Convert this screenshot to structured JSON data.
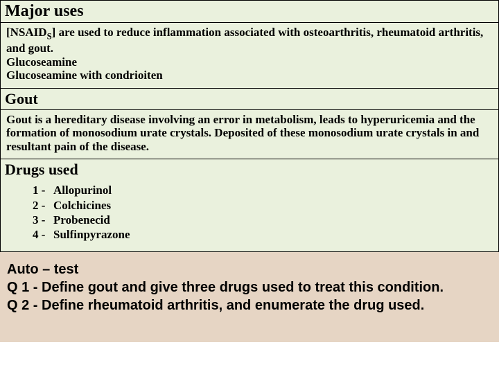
{
  "colors": {
    "upper_bg": "#eaf1dd",
    "lower_bg": "#e6d5c4",
    "border": "#000000",
    "text": "#000000"
  },
  "section1": {
    "title": "Major uses",
    "line1_prefix": "[NSAID",
    "line1_sub": "S",
    "line1_suffix": "] are used to reduce inflammation associated with osteoarthritis, rheumatoid arthritis, and gout.",
    "line2": "Glucoseamine",
    "line3": "Glucoseamine with condrioiten"
  },
  "section2": {
    "title": "Gout",
    "body": "Gout is a hereditary disease involving an error in metabolism, leads to hyperuricemia and the formation of monosodium urate crystals. Deposited of these monosodium urate crystals in and resultant pain of the disease."
  },
  "section3": {
    "title": "Drugs used",
    "items": [
      {
        "num": "1 -",
        "label": "Allopurinol"
      },
      {
        "num": "2 -",
        "label": "Colchicines"
      },
      {
        "num": "3 -",
        "label": "Probenecid"
      },
      {
        "num": "4 -",
        "label": "Sulfinpyrazone"
      }
    ]
  },
  "autotest": {
    "title": " Auto – test",
    "q1": "Q 1 - Define gout and give three drugs used to treat this condition.",
    "q2": "Q 2 - Define rheumatoid arthritis, and enumerate the drug used."
  }
}
